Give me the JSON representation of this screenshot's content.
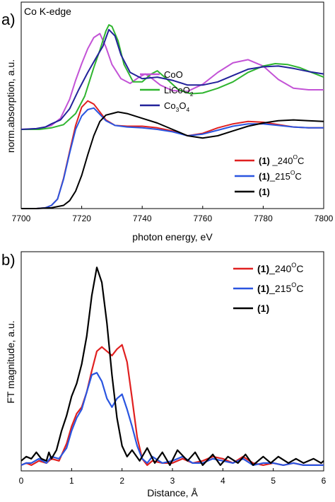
{
  "chart_data": [
    {
      "type": "line",
      "panel_label": "a)",
      "annotation": "Co K-edge",
      "xlabel": "photon energy, eV",
      "ylabel": "norm.absorption, a.u.",
      "xlim": [
        7700,
        7800
      ],
      "x_ticks": [
        7700,
        7720,
        7740,
        7760,
        7780,
        7800
      ],
      "x_tick_labels": [
        "7700",
        "7720",
        "7740",
        "7760",
        "7780",
        "7800"
      ],
      "grid": false,
      "legends": [
        {
          "placement": "middle-center",
          "entries": [
            {
              "series": "CoO",
              "text": "CoO"
            },
            {
              "series": "LiCoO2",
              "text": "LiCoO",
              "sub": "2"
            },
            {
              "series": "Co3O4",
              "text": "Co",
              "sub": "3",
              "text2": "O",
              "sub2": "4"
            }
          ]
        },
        {
          "placement": "lower-right",
          "entries": [
            {
              "series": "s240",
              "bold": "(1)",
              "text": " _240",
              "sup": "O",
              "text2": "C"
            },
            {
              "series": "s215",
              "bold": "(1)",
              "text": "_215",
              "sup": "O",
              "text2": "C"
            },
            {
              "series": "s1",
              "bold": "(1)",
              "text": ""
            }
          ]
        }
      ],
      "series": [
        {
          "id": "CoO",
          "color": "#c353d6",
          "x": [
            7700,
            7706,
            7710,
            7713,
            7716,
            7718,
            7720,
            7722,
            7724,
            7726,
            7728,
            7730,
            7733,
            7736,
            7739,
            7741,
            7743,
            7746,
            7750,
            7755,
            7760,
            7765,
            7770,
            7775,
            7780,
            7785,
            7790,
            7795,
            7800
          ],
          "y": [
            1.0,
            1.01,
            1.05,
            1.14,
            1.38,
            1.62,
            1.83,
            2.02,
            2.16,
            2.21,
            2.04,
            1.82,
            1.64,
            1.58,
            1.66,
            1.7,
            1.65,
            1.56,
            1.49,
            1.48,
            1.57,
            1.72,
            1.84,
            1.88,
            1.8,
            1.63,
            1.52,
            1.5,
            1.5
          ]
        },
        {
          "id": "LiCoO2",
          "color": "#2fb52f",
          "x": [
            7700,
            7706,
            7710,
            7714,
            7718,
            7721,
            7724,
            7726,
            7728,
            7729,
            7730,
            7732,
            7734,
            7737,
            7740,
            7743,
            7745,
            7748,
            7752,
            7756,
            7760,
            7765,
            7770,
            7775,
            7780,
            7784,
            7788,
            7792,
            7796,
            7800
          ],
          "y": [
            1.0,
            1.0,
            1.02,
            1.06,
            1.2,
            1.42,
            1.78,
            2.0,
            2.24,
            2.32,
            2.3,
            2.12,
            1.82,
            1.6,
            1.6,
            1.7,
            1.74,
            1.64,
            1.5,
            1.45,
            1.46,
            1.52,
            1.6,
            1.72,
            1.8,
            1.83,
            1.82,
            1.78,
            1.72,
            1.66
          ]
        },
        {
          "id": "Co3O4",
          "color": "#22229a",
          "x": [
            7700,
            7705,
            7708,
            7710,
            7713,
            7716,
            7719,
            7722,
            7725,
            7727,
            7729,
            7731,
            7733,
            7736,
            7740,
            7745,
            7750,
            7755,
            7760,
            7765,
            7770,
            7775,
            7780,
            7785,
            7790,
            7795,
            7800
          ],
          "y": [
            1.0,
            1.01,
            1.03,
            1.07,
            1.12,
            1.26,
            1.5,
            1.72,
            1.92,
            2.05,
            2.26,
            2.18,
            1.94,
            1.72,
            1.64,
            1.66,
            1.62,
            1.56,
            1.56,
            1.6,
            1.68,
            1.76,
            1.79,
            1.8,
            1.77,
            1.73,
            1.7
          ]
        },
        {
          "id": "s240",
          "color": "#e02020",
          "x": [
            7700,
            7705,
            7708,
            7710,
            7712,
            7714,
            7716,
            7718,
            7720,
            7722,
            7724,
            7726,
            7728,
            7731,
            7735,
            7740,
            7745,
            7750,
            7755,
            7760,
            7765,
            7770,
            7775,
            7780,
            7785,
            7790,
            7795,
            7800
          ],
          "y": [
            0.0,
            0.0,
            0.01,
            0.04,
            0.12,
            0.38,
            0.72,
            1.05,
            1.28,
            1.36,
            1.32,
            1.22,
            1.12,
            1.05,
            1.04,
            1.04,
            1.02,
            0.98,
            0.92,
            0.95,
            1.02,
            1.07,
            1.1,
            1.09,
            1.06,
            1.03,
            1.02,
            1.02
          ]
        },
        {
          "id": "s215",
          "color": "#2a55e0",
          "x": [
            7700,
            7705,
            7708,
            7710,
            7712,
            7714,
            7716,
            7718,
            7720,
            7722,
            7724,
            7726,
            7728,
            7731,
            7735,
            7740,
            7745,
            7750,
            7755,
            7760,
            7765,
            7770,
            7775,
            7780,
            7785,
            7790,
            7795,
            7800
          ],
          "y": [
            0.0,
            0.0,
            0.01,
            0.04,
            0.12,
            0.37,
            0.7,
            1.0,
            1.17,
            1.25,
            1.27,
            1.19,
            1.11,
            1.05,
            1.03,
            1.02,
            1.0,
            0.97,
            0.92,
            0.94,
            0.99,
            1.04,
            1.07,
            1.07,
            1.05,
            1.03,
            1.02,
            1.02
          ]
        },
        {
          "id": "s1",
          "color": "#000000",
          "x": [
            7700,
            7705,
            7710,
            7714,
            7716,
            7718,
            7720,
            7722,
            7724,
            7726,
            7728,
            7730,
            7732,
            7735,
            7740,
            7745,
            7750,
            7755,
            7760,
            7765,
            7770,
            7775,
            7780,
            7785,
            7790,
            7795,
            7800
          ],
          "y": [
            0.0,
            0.0,
            0.01,
            0.04,
            0.1,
            0.22,
            0.42,
            0.68,
            0.92,
            1.1,
            1.18,
            1.2,
            1.22,
            1.2,
            1.14,
            1.08,
            1.0,
            0.92,
            0.89,
            0.92,
            0.98,
            1.04,
            1.08,
            1.11,
            1.12,
            1.11,
            1.1
          ]
        }
      ]
    },
    {
      "type": "line",
      "panel_label": "b)",
      "xlabel": "Distance, Å",
      "ylabel": "FT magnitude, a.u.",
      "xlim": [
        0,
        6
      ],
      "ylim": [
        0,
        1
      ],
      "x_ticks": [
        0,
        1,
        2,
        3,
        4,
        5,
        6
      ],
      "x_tick_labels": [
        "0",
        "1",
        "2",
        "3",
        "4",
        "5",
        "6"
      ],
      "grid": false,
      "legends": [
        {
          "placement": "upper-right",
          "entries": [
            {
              "series": "b240",
              "bold": "(1)",
              "text": "_240",
              "sup": "O",
              "text2": "C"
            },
            {
              "series": "b215",
              "bold": "(1)",
              "text": "_215",
              "sup": "O",
              "text2": "C"
            },
            {
              "series": "b1",
              "bold": "(1)",
              "text": ""
            }
          ]
        }
      ],
      "series": [
        {
          "id": "b240",
          "color": "#e02020",
          "x": [
            0,
            0.1,
            0.2,
            0.35,
            0.5,
            0.6,
            0.75,
            0.9,
            1.0,
            1.1,
            1.2,
            1.3,
            1.4,
            1.5,
            1.6,
            1.7,
            1.8,
            1.9,
            2.0,
            2.1,
            2.2,
            2.3,
            2.4,
            2.5,
            2.6,
            2.8,
            3.0,
            3.2,
            3.4,
            3.6,
            3.8,
            4.0,
            4.2,
            4.4,
            4.6,
            4.8,
            5.0,
            5.2,
            5.4,
            5.6,
            5.8,
            6.0
          ],
          "y": [
            0.02,
            0.03,
            0.02,
            0.04,
            0.03,
            0.05,
            0.04,
            0.12,
            0.2,
            0.26,
            0.29,
            0.36,
            0.46,
            0.55,
            0.57,
            0.55,
            0.53,
            0.56,
            0.58,
            0.5,
            0.33,
            0.15,
            0.05,
            0.02,
            0.04,
            0.03,
            0.03,
            0.05,
            0.03,
            0.04,
            0.06,
            0.05,
            0.03,
            0.06,
            0.03,
            0.02,
            0.03,
            0.02,
            0.03,
            0.02,
            0.02,
            0.02
          ]
        },
        {
          "id": "b215",
          "color": "#2a55e0",
          "x": [
            0,
            0.1,
            0.2,
            0.35,
            0.5,
            0.6,
            0.75,
            0.9,
            1.0,
            1.1,
            1.2,
            1.3,
            1.4,
            1.5,
            1.6,
            1.7,
            1.8,
            1.9,
            2.0,
            2.1,
            2.2,
            2.3,
            2.4,
            2.5,
            2.6,
            2.8,
            3.0,
            3.2,
            3.4,
            3.6,
            3.8,
            4.0,
            4.2,
            4.4,
            4.6,
            4.8,
            5.0,
            5.2,
            5.4,
            5.6,
            5.8,
            6.0
          ],
          "y": [
            0.02,
            0.03,
            0.03,
            0.05,
            0.03,
            0.06,
            0.05,
            0.1,
            0.18,
            0.24,
            0.28,
            0.36,
            0.44,
            0.45,
            0.41,
            0.33,
            0.29,
            0.33,
            0.35,
            0.28,
            0.2,
            0.11,
            0.05,
            0.03,
            0.06,
            0.03,
            0.04,
            0.06,
            0.03,
            0.03,
            0.05,
            0.04,
            0.03,
            0.05,
            0.02,
            0.03,
            0.03,
            0.02,
            0.03,
            0.02,
            0.02,
            0.02
          ]
        },
        {
          "id": "b1",
          "color": "#000000",
          "x": [
            0,
            0.1,
            0.2,
            0.3,
            0.4,
            0.5,
            0.55,
            0.6,
            0.7,
            0.8,
            0.9,
            1.0,
            1.1,
            1.2,
            1.3,
            1.4,
            1.5,
            1.6,
            1.7,
            1.8,
            1.9,
            2.0,
            2.1,
            2.2,
            2.35,
            2.5,
            2.65,
            2.8,
            2.95,
            3.1,
            3.3,
            3.45,
            3.6,
            3.8,
            3.95,
            4.1,
            4.3,
            4.45,
            4.6,
            4.8,
            4.95,
            5.1,
            5.3,
            5.45,
            5.6,
            5.8,
            5.95,
            6.0
          ],
          "y": [
            0.04,
            0.06,
            0.05,
            0.08,
            0.05,
            0.04,
            0.08,
            0.05,
            0.09,
            0.18,
            0.25,
            0.34,
            0.4,
            0.49,
            0.62,
            0.81,
            0.94,
            0.87,
            0.68,
            0.44,
            0.24,
            0.11,
            0.06,
            0.09,
            0.04,
            0.1,
            0.03,
            0.08,
            0.02,
            0.09,
            0.04,
            0.08,
            0.02,
            0.07,
            0.02,
            0.06,
            0.03,
            0.07,
            0.02,
            0.06,
            0.03,
            0.06,
            0.03,
            0.05,
            0.03,
            0.05,
            0.03,
            0.04
          ]
        }
      ]
    }
  ]
}
